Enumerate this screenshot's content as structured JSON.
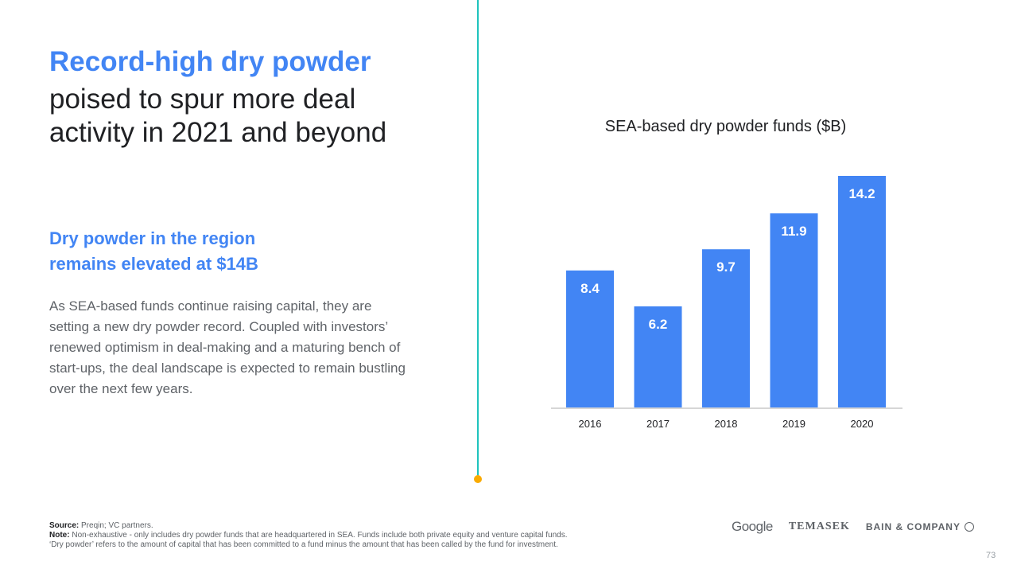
{
  "heading": {
    "highlight": "Record-high dry powder",
    "rest": "poised to spur more deal activity in 2021 and beyond"
  },
  "subheading": "Dry powder in the region remains elevated at $14B",
  "body": "As SEA-based funds continue raising capital, they are setting a new dry powder record. Coupled with investors’ renewed optimism in deal-making and a maturing bench of start-ups, the deal landscape is expected to remain bustling over the next few years.",
  "chart_data": {
    "type": "bar",
    "title": "SEA-based dry powder funds ($B)",
    "categories": [
      "2016",
      "2017",
      "2018",
      "2019",
      "2020"
    ],
    "values": [
      8.4,
      6.2,
      9.7,
      11.9,
      14.2
    ],
    "value_labels": [
      "8.4",
      "6.2",
      "9.7",
      "11.9",
      "14.2"
    ],
    "xlabel": "",
    "ylabel": "",
    "ylim": [
      0,
      14.2
    ],
    "bar_color": "#4285F4",
    "grid": false
  },
  "footnotes": {
    "source_label": "Source:",
    "source_text": "Preqin; VC partners.",
    "note_label": "Note:",
    "note_text": "Non-exhaustive - only includes dry powder funds that are headquartered in SEA. Funds include both private equity and venture capital funds.",
    "definition": "‘Dry powder’ refers to the amount of capital that has been committed to a fund minus the amount that has been called by the fund for investment."
  },
  "logos": {
    "google": "Google",
    "temasek": "TEMASEK",
    "bain": "BAIN & COMPANY"
  },
  "page_number": "73",
  "colors": {
    "accent": "#4285F4",
    "divider": "#1fc3bd",
    "divider_dot": "#f9ab00"
  }
}
